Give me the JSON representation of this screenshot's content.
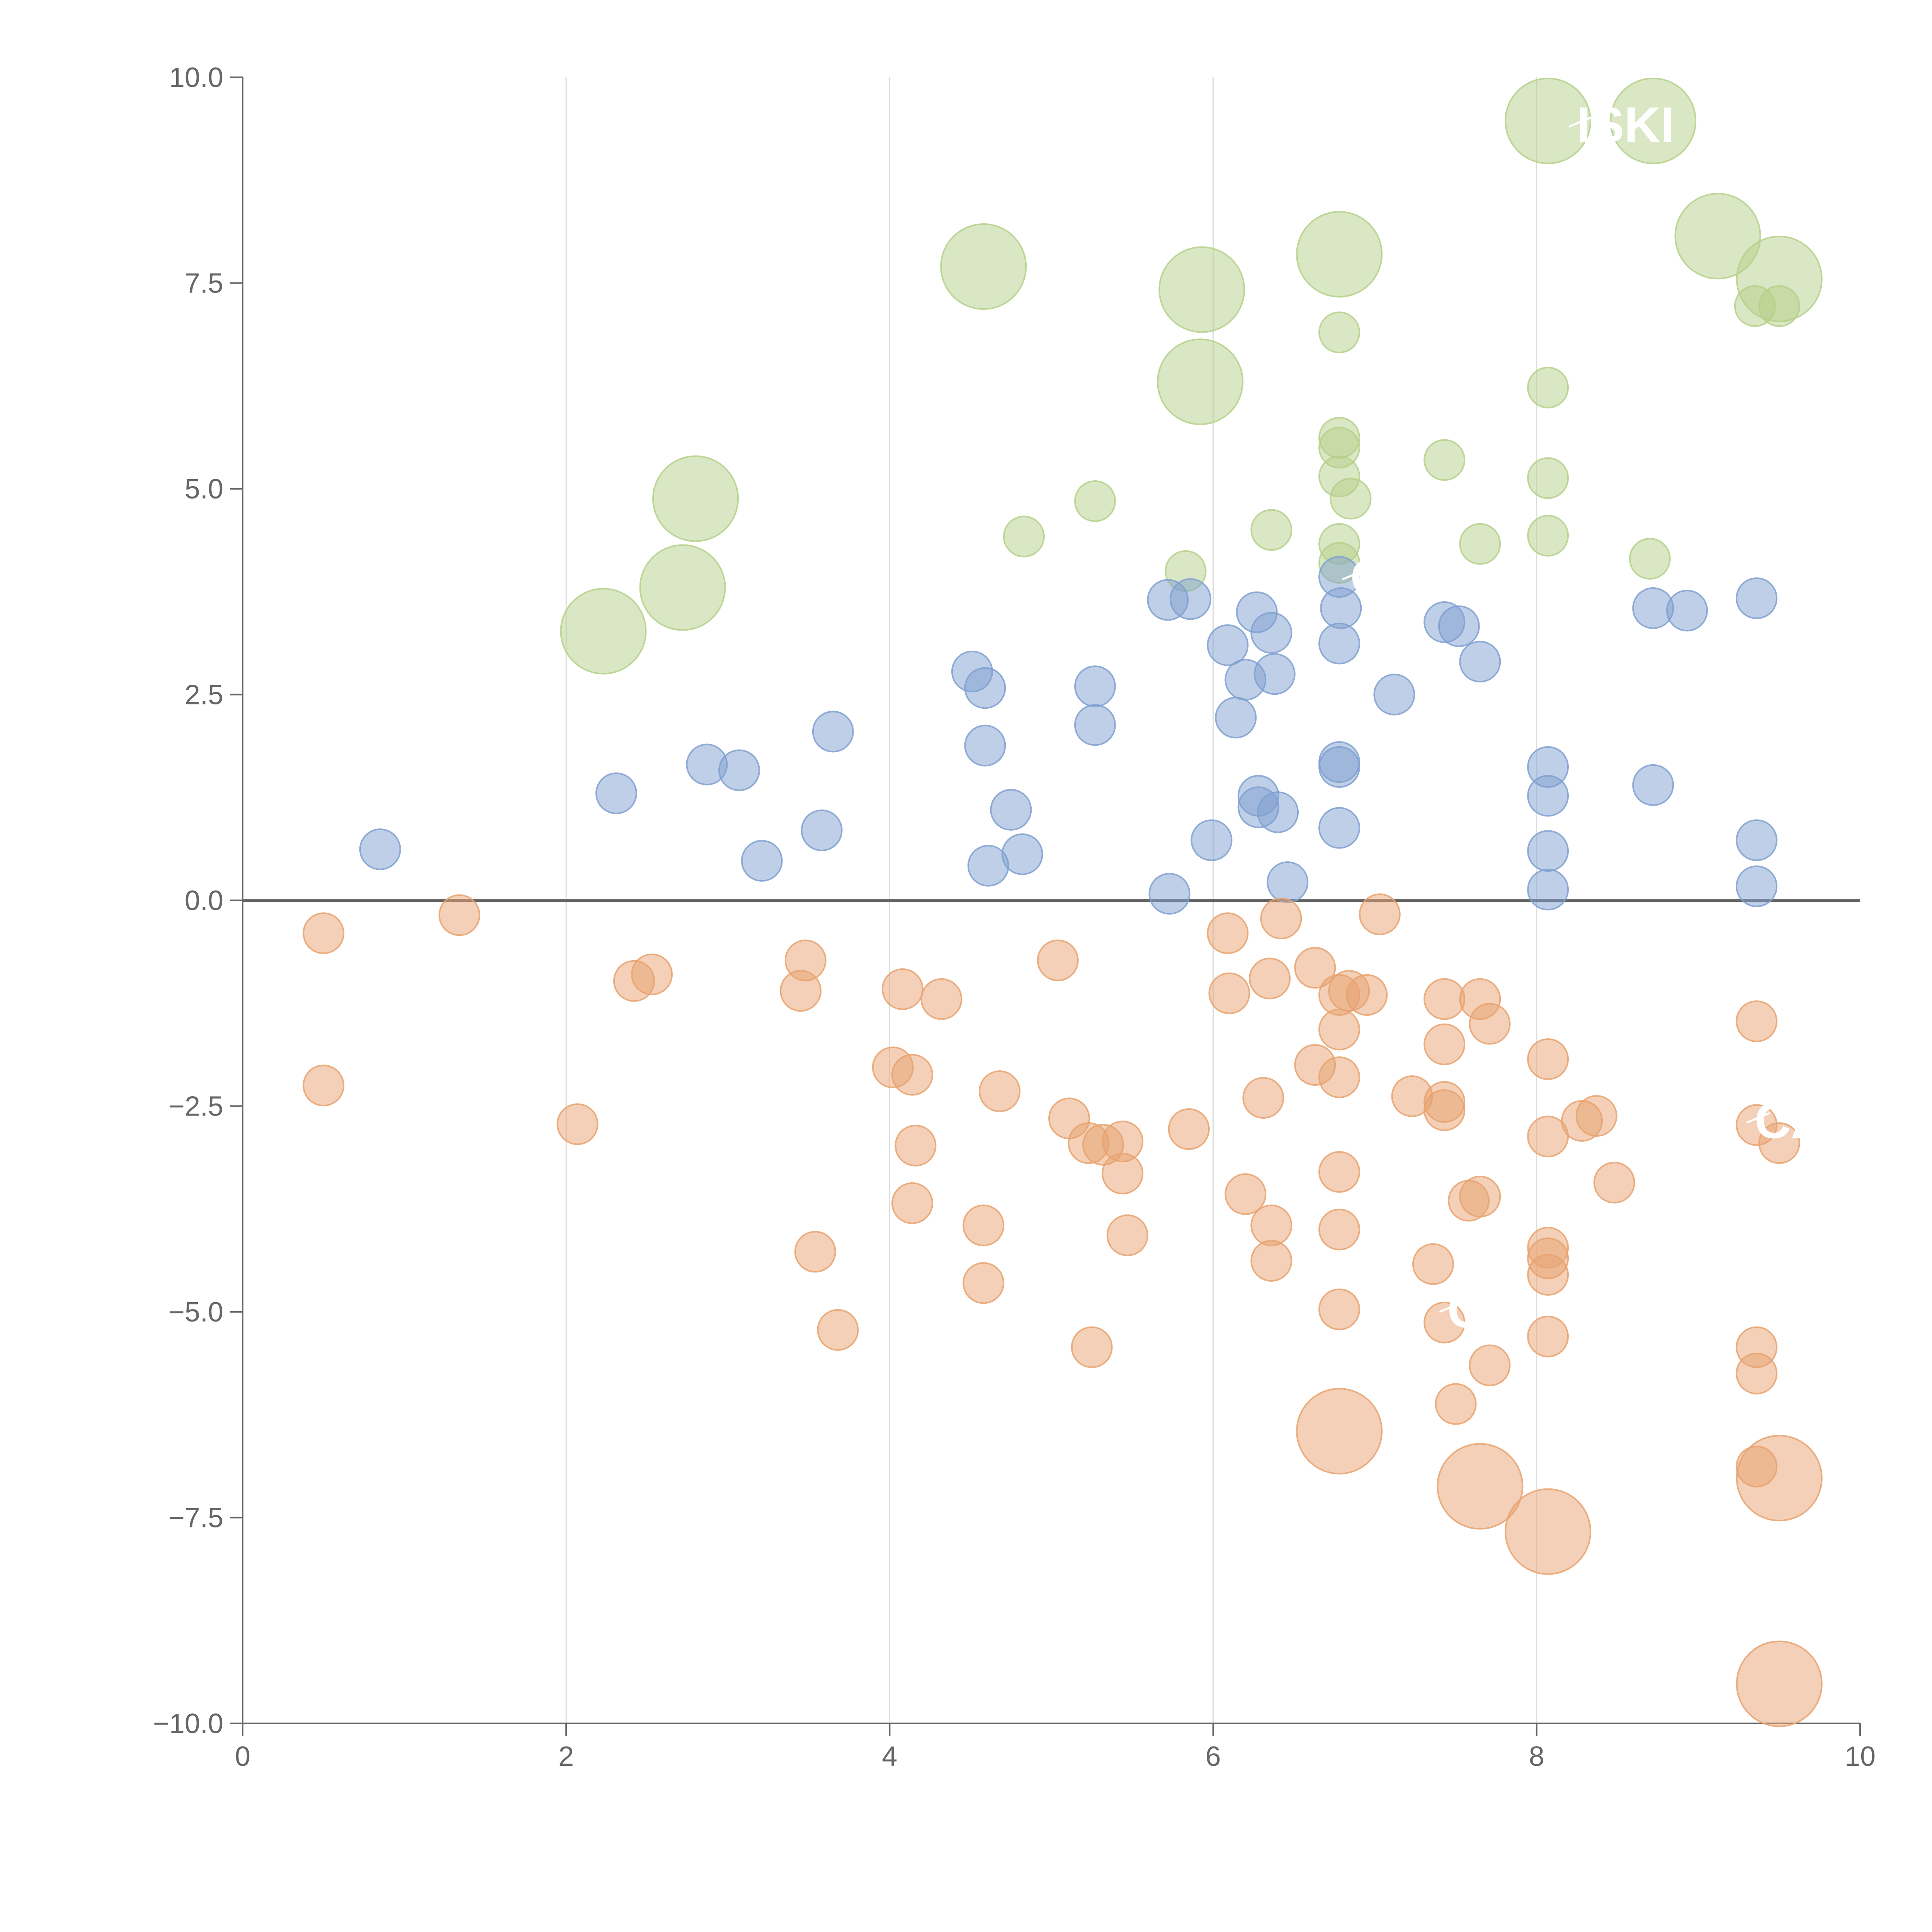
{
  "colors": {
    "positive": "#7fa0d0",
    "negative": "#e8a26f",
    "top": "#b5d08a",
    "axis": "#666666",
    "grid": "#dddddd"
  },
  "chart_data": {
    "type": "scatter",
    "title": "",
    "xlabel": "",
    "ylabel": "",
    "xlim": [
      0,
      10
    ],
    "ylim": [
      -10,
      10
    ],
    "x_ticks": [
      0,
      2,
      4,
      6,
      8,
      10
    ],
    "x_tick_labels": [
      "0",
      "2",
      "4",
      "6",
      "8",
      "10"
    ],
    "y_ticks": [
      -10,
      -7.5,
      -5,
      -2.5,
      0,
      2.5,
      5,
      7.5,
      10
    ],
    "y_tick_labels": [
      "−10.0",
      "−7.5",
      "−5.0",
      "−2.5",
      "0.0",
      "2.5",
      "5.0",
      "7.5",
      "10.0"
    ],
    "grid": "vertical",
    "zero_line": true,
    "annotations": [
      {
        "text": "ISKI",
        "x": 8.2,
        "y": 9.4,
        "series": "top"
      },
      {
        "text": "C",
        "x": 6.8,
        "y": 3.9,
        "series": "top"
      },
      {
        "text": "CA",
        "x": 9.3,
        "y": -2.7,
        "series": "negative"
      },
      {
        "text": "C",
        "x": 7.4,
        "y": -5.0,
        "series": "negative"
      }
    ],
    "series": [
      {
        "name": "top",
        "color_key": "top",
        "points": [
          [
            8.07,
            9.47,
            2
          ],
          [
            8.72,
            9.47,
            2
          ],
          [
            9.12,
            8.07,
            2
          ],
          [
            9.5,
            7.55,
            2
          ],
          [
            9.35,
            7.22,
            1
          ],
          [
            9.5,
            7.22,
            1
          ],
          [
            6.78,
            7.85,
            2
          ],
          [
            4.58,
            7.7,
            2
          ],
          [
            5.93,
            7.42,
            2
          ],
          [
            5.92,
            6.3,
            2
          ],
          [
            2.8,
            4.88,
            2
          ],
          [
            2.72,
            3.8,
            2
          ],
          [
            2.23,
            3.27,
            2
          ],
          [
            6.78,
            6.9,
            1
          ],
          [
            8.07,
            6.23,
            1
          ],
          [
            6.78,
            5.62,
            1
          ],
          [
            6.78,
            5.5,
            1
          ],
          [
            6.78,
            5.15,
            1
          ],
          [
            6.85,
            4.88,
            1
          ],
          [
            7.43,
            5.35,
            1
          ],
          [
            8.07,
            5.13,
            1
          ],
          [
            5.27,
            4.85,
            1
          ],
          [
            4.83,
            4.42,
            1
          ],
          [
            6.36,
            4.5,
            1
          ],
          [
            7.65,
            4.33,
            1
          ],
          [
            8.07,
            4.43,
            1
          ],
          [
            8.7,
            4.15,
            1
          ],
          [
            6.78,
            4.33,
            1
          ],
          [
            6.78,
            4.1,
            1
          ],
          [
            5.83,
            4.0,
            1
          ]
        ]
      },
      {
        "name": "positive",
        "color_key": "positive",
        "points": [
          [
            0.85,
            0.62,
            1
          ],
          [
            2.31,
            1.3,
            1
          ],
          [
            2.87,
            1.65,
            1
          ],
          [
            3.07,
            1.58,
            1
          ],
          [
            3.21,
            0.48,
            1
          ],
          [
            3.58,
            0.85,
            1
          ],
          [
            3.65,
            2.05,
            1
          ],
          [
            4.51,
            2.78,
            1
          ],
          [
            4.59,
            2.58,
            1
          ],
          [
            4.59,
            1.88,
            1
          ],
          [
            4.75,
            1.1,
            1
          ],
          [
            4.61,
            0.42,
            1
          ],
          [
            4.82,
            0.56,
            1
          ],
          [
            5.27,
            2.6,
            1
          ],
          [
            5.27,
            2.13,
            1
          ],
          [
            5.72,
            3.65,
            1
          ],
          [
            5.86,
            3.66,
            1
          ],
          [
            6.27,
            3.5,
            1
          ],
          [
            6.36,
            3.25,
            1
          ],
          [
            6.09,
            3.1,
            1
          ],
          [
            6.2,
            2.68,
            1
          ],
          [
            6.38,
            2.75,
            1
          ],
          [
            6.14,
            2.22,
            1
          ],
          [
            6.28,
            1.27,
            1
          ],
          [
            6.28,
            1.13,
            1
          ],
          [
            6.4,
            1.07,
            1
          ],
          [
            5.99,
            0.73,
            1
          ],
          [
            5.73,
            0.08,
            1
          ],
          [
            6.46,
            0.22,
            1
          ],
          [
            6.78,
            3.93,
            1
          ],
          [
            6.79,
            3.55,
            1
          ],
          [
            6.78,
            3.12,
            1
          ],
          [
            6.78,
            1.68,
            1
          ],
          [
            6.78,
            1.62,
            1
          ],
          [
            6.78,
            0.88,
            1
          ],
          [
            7.12,
            2.5,
            1
          ],
          [
            7.43,
            3.38,
            1
          ],
          [
            7.52,
            3.33,
            1
          ],
          [
            7.65,
            2.9,
            1
          ],
          [
            8.07,
            1.62,
            1
          ],
          [
            8.07,
            1.27,
            1
          ],
          [
            8.07,
            0.6,
            1
          ],
          [
            8.07,
            0.13,
            1
          ],
          [
            8.72,
            3.55,
            1
          ],
          [
            8.93,
            3.52,
            1
          ],
          [
            8.72,
            1.4,
            1
          ],
          [
            9.36,
            3.67,
            1
          ],
          [
            9.36,
            0.73,
            1
          ],
          [
            9.36,
            0.17,
            1
          ]
        ]
      },
      {
        "name": "negative",
        "color_key": "negative",
        "points": [
          [
            0.5,
            -0.4,
            1
          ],
          [
            1.34,
            -0.18,
            1
          ],
          [
            0.5,
            -2.25,
            1
          ],
          [
            2.42,
            -0.98,
            1
          ],
          [
            2.53,
            -0.9,
            1
          ],
          [
            2.07,
            -2.72,
            1
          ],
          [
            3.48,
            -0.73,
            1
          ],
          [
            3.45,
            -1.1,
            1
          ],
          [
            3.54,
            -4.27,
            1
          ],
          [
            3.68,
            -5.22,
            1
          ],
          [
            4.08,
            -1.08,
            1
          ],
          [
            4.32,
            -1.2,
            1
          ],
          [
            4.02,
            -2.03,
            1
          ],
          [
            4.14,
            -2.12,
            1
          ],
          [
            4.16,
            -2.98,
            1
          ],
          [
            4.14,
            -3.68,
            1
          ],
          [
            4.68,
            -2.32,
            1
          ],
          [
            4.58,
            -3.95,
            1
          ],
          [
            4.58,
            -4.65,
            1
          ],
          [
            5.04,
            -0.73,
            1
          ],
          [
            5.11,
            -2.65,
            1
          ],
          [
            5.23,
            -2.95,
            1
          ],
          [
            5.32,
            -2.97,
            1
          ],
          [
            5.44,
            -2.93,
            1
          ],
          [
            5.44,
            -3.32,
            1
          ],
          [
            5.47,
            -4.07,
            1
          ],
          [
            5.25,
            -5.43,
            1
          ],
          [
            5.85,
            -2.78,
            1
          ],
          [
            6.09,
            -0.4,
            1
          ],
          [
            6.42,
            -0.22,
            1
          ],
          [
            6.1,
            -1.13,
            1
          ],
          [
            6.35,
            -0.95,
            1
          ],
          [
            6.31,
            -2.4,
            1
          ],
          [
            6.2,
            -3.57,
            1
          ],
          [
            6.36,
            -3.95,
            1
          ],
          [
            6.36,
            -4.38,
            1
          ],
          [
            6.63,
            -0.82,
            1
          ],
          [
            6.78,
            -1.15,
            1
          ],
          [
            6.84,
            -1.1,
            1
          ],
          [
            6.95,
            -1.15,
            1
          ],
          [
            6.78,
            -1.57,
            1
          ],
          [
            6.63,
            -2.0,
            1
          ],
          [
            6.78,
            -2.15,
            1
          ],
          [
            6.78,
            -3.3,
            1
          ],
          [
            6.78,
            -4.0,
            1
          ],
          [
            6.78,
            -4.97,
            1
          ],
          [
            7.03,
            -0.17,
            1
          ],
          [
            7.43,
            -1.2,
            1
          ],
          [
            7.43,
            -1.75,
            1
          ],
          [
            7.23,
            -2.38,
            1
          ],
          [
            7.43,
            -2.45,
            1
          ],
          [
            7.43,
            -2.55,
            1
          ],
          [
            7.36,
            -4.42,
            1
          ],
          [
            7.43,
            -5.13,
            1
          ],
          [
            7.5,
            -6.12,
            1
          ],
          [
            7.65,
            -1.2,
            1
          ],
          [
            7.71,
            -1.5,
            1
          ],
          [
            7.58,
            -3.65,
            1
          ],
          [
            7.65,
            -3.6,
            1
          ],
          [
            7.71,
            -5.65,
            1
          ],
          [
            8.07,
            -1.93,
            1
          ],
          [
            8.07,
            -2.87,
            1
          ],
          [
            8.07,
            -4.22,
            1
          ],
          [
            8.07,
            -4.35,
            1
          ],
          [
            8.07,
            -4.55,
            1
          ],
          [
            8.07,
            -5.3,
            1
          ],
          [
            8.28,
            -2.68,
            1
          ],
          [
            8.37,
            -2.62,
            1
          ],
          [
            8.48,
            -3.43,
            1
          ],
          [
            9.36,
            -1.47,
            1
          ],
          [
            9.36,
            -2.73,
            1
          ],
          [
            9.5,
            -2.95,
            1
          ],
          [
            9.36,
            -5.43,
            1
          ],
          [
            9.36,
            -5.75,
            1
          ],
          [
            9.36,
            -6.88,
            1
          ],
          [
            6.78,
            -6.45,
            2
          ],
          [
            7.65,
            -7.12,
            2
          ],
          [
            8.07,
            -7.67,
            2
          ],
          [
            9.5,
            -7.02,
            2
          ],
          [
            9.5,
            -9.52,
            2
          ]
        ]
      }
    ]
  }
}
